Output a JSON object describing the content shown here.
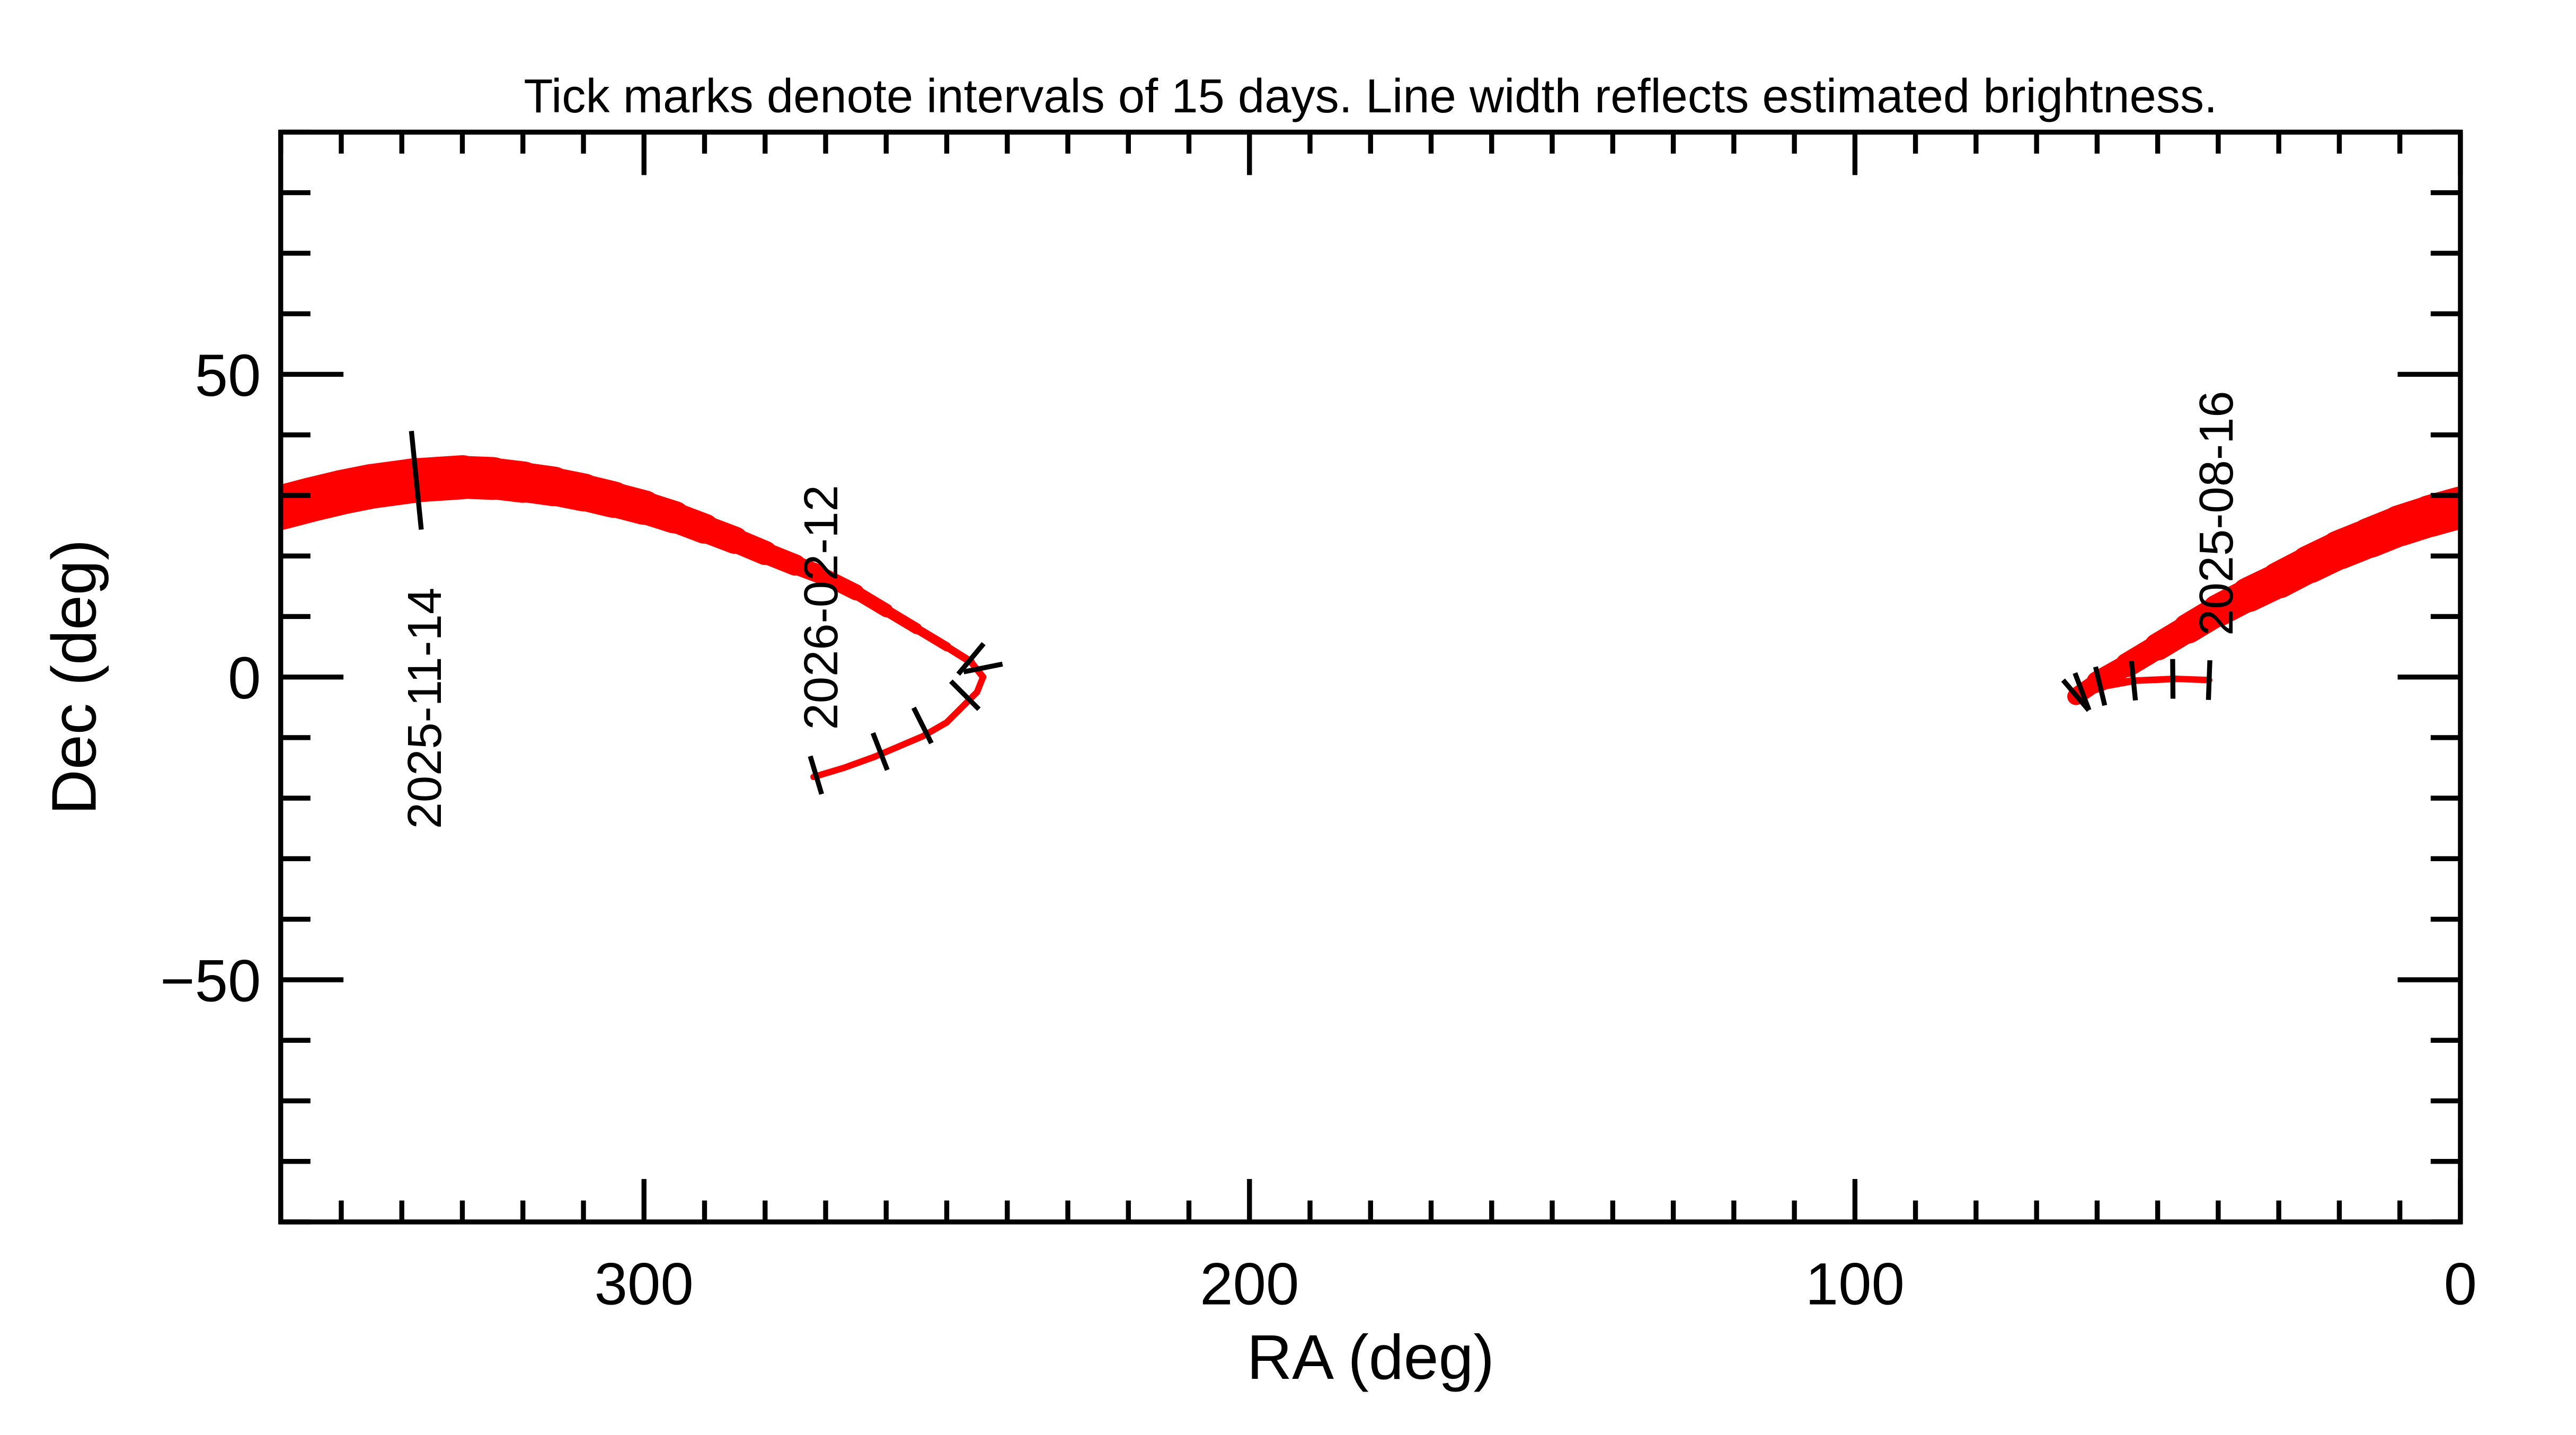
{
  "chart_data": {
    "type": "line",
    "title": "Tick marks denote intervals of 15 days.  Line width reflects estimated brightness.",
    "xlabel": "RA (deg)",
    "ylabel": "Dec (deg)",
    "xlim": [
      360,
      0
    ],
    "ylim": [
      -90,
      90
    ],
    "x_reversed": true,
    "x_major_ticks": [
      300,
      200,
      100,
      0
    ],
    "x_tick_labels": [
      "300",
      "200",
      "100",
      "0"
    ],
    "x_minor_step": 10,
    "y_major_ticks": [
      50,
      0,
      -50
    ],
    "y_tick_labels": [
      "50",
      "0",
      "−50"
    ],
    "y_minor_step": 10,
    "grid": false,
    "colors": {
      "track": "#ff0000",
      "ticks": "#000000",
      "axes": "#000000"
    },
    "segments": [
      {
        "points": [
          [
            41.5,
            -0.5,
            1.3
          ],
          [
            47,
            -0.3,
            1.3
          ],
          [
            54,
            -0.6,
            1.4
          ],
          [
            59,
            -1.5,
            1.6
          ],
          [
            62,
            -2.5,
            2
          ],
          [
            63.5,
            -3.2,
            3
          ],
          [
            60,
            -0.8,
            4
          ],
          [
            55,
            2,
            4.6
          ],
          [
            50,
            5,
            5.2
          ],
          [
            45,
            8,
            5.8
          ],
          [
            40,
            11,
            6.3
          ],
          [
            35,
            13.6,
            6.8
          ],
          [
            30,
            16,
            7.2
          ],
          [
            25,
            18.6,
            7.5
          ],
          [
            20,
            21,
            7.8
          ],
          [
            15,
            23,
            8
          ],
          [
            10,
            25,
            8.2
          ],
          [
            5,
            26.6,
            8.4
          ],
          [
            0,
            28,
            8.5
          ]
        ]
      },
      {
        "points": [
          [
            360,
            28,
            9
          ],
          [
            355,
            29.3,
            9
          ],
          [
            350,
            30.5,
            9
          ],
          [
            345,
            31.5,
            9
          ],
          [
            337.6,
            32.5,
            9
          ],
          [
            330,
            33,
            8.8
          ],
          [
            325,
            32.8,
            8.5
          ],
          [
            320,
            32.2,
            8.2
          ],
          [
            315,
            31.5,
            7.8
          ],
          [
            310,
            30.5,
            7.5
          ],
          [
            305,
            29.3,
            7.2
          ],
          [
            300,
            28,
            6.8
          ],
          [
            295,
            26.4,
            6.3
          ],
          [
            290,
            24.5,
            5.8
          ],
          [
            285,
            22.6,
            5.2
          ],
          [
            280,
            20.5,
            4.6
          ],
          [
            275,
            18.5,
            4
          ],
          [
            271,
            17,
            3.5
          ],
          [
            265,
            14,
            3
          ],
          [
            260,
            11,
            2.5
          ],
          [
            255,
            8,
            2
          ],
          [
            250,
            5,
            1.7
          ],
          [
            246,
            2.5,
            1.4
          ],
          [
            244,
            0,
            1.3
          ],
          [
            245,
            -2.5,
            1.3
          ],
          [
            247,
            -4.5,
            1.3
          ],
          [
            250,
            -7.5,
            1.3
          ],
          [
            254,
            -9.8,
            1.3
          ],
          [
            258,
            -11.5,
            1.3
          ],
          [
            262,
            -13.2,
            1.3
          ],
          [
            267,
            -15,
            1.3
          ],
          [
            272,
            -16.5,
            1.3
          ]
        ]
      }
    ],
    "interval_ticks": [
      [
        41.5,
        -0.5
      ],
      [
        47.5,
        -0.3
      ],
      [
        54,
        -0.6
      ],
      [
        59.5,
        -1.5
      ],
      [
        62.5,
        -2.4
      ],
      [
        63.5,
        -3
      ],
      [
        337.6,
        32.5
      ],
      [
        244,
        1.5
      ],
      [
        246,
        3
      ],
      [
        247,
        -3
      ],
      [
        254,
        -8
      ],
      [
        261,
        -12.3
      ],
      [
        271.6,
        -16.2
      ]
    ],
    "annotations": [
      {
        "text": "2025-08-16",
        "ra": 41.5,
        "dec": -0.5
      },
      {
        "text": "2025-11-14",
        "ra": 337.6,
        "dec": 32.5
      },
      {
        "text": "2026-02-12",
        "ra": 271,
        "dec": 17
      }
    ]
  }
}
